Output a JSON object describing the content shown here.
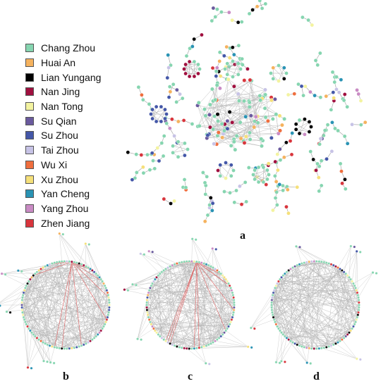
{
  "legend": {
    "items": [
      {
        "label": "Chang Zhou",
        "color": "#86d5b0"
      },
      {
        "label": "Huai An",
        "color": "#f5b25e"
      },
      {
        "label": "Lian Yungang",
        "color": "#000000"
      },
      {
        "label": "Nan Jing",
        "color": "#a0103f"
      },
      {
        "label": "Nan Tong",
        "color": "#f3f3a0"
      },
      {
        "label": "Su Qian",
        "color": "#6a5a9e"
      },
      {
        "label": "Su Zhou",
        "color": "#4457a8"
      },
      {
        "label": "Tai Zhou",
        "color": "#c7c3e6"
      },
      {
        "label": "Wu Xi",
        "color": "#ef6e3e"
      },
      {
        "label": "Xu Zhou",
        "color": "#f5e07a"
      },
      {
        "label": "Yan Cheng",
        "color": "#2a93b4"
      },
      {
        "label": "Yang Zhou",
        "color": "#c98bc4"
      },
      {
        "label": "Zhen Jiang",
        "color": "#d8353c"
      }
    ]
  },
  "panels": {
    "a": "a",
    "b": "b",
    "c": "c",
    "d": "d"
  },
  "colors": {
    "edge": "#c8c8c8",
    "highlight_edge": "#e06060"
  }
}
